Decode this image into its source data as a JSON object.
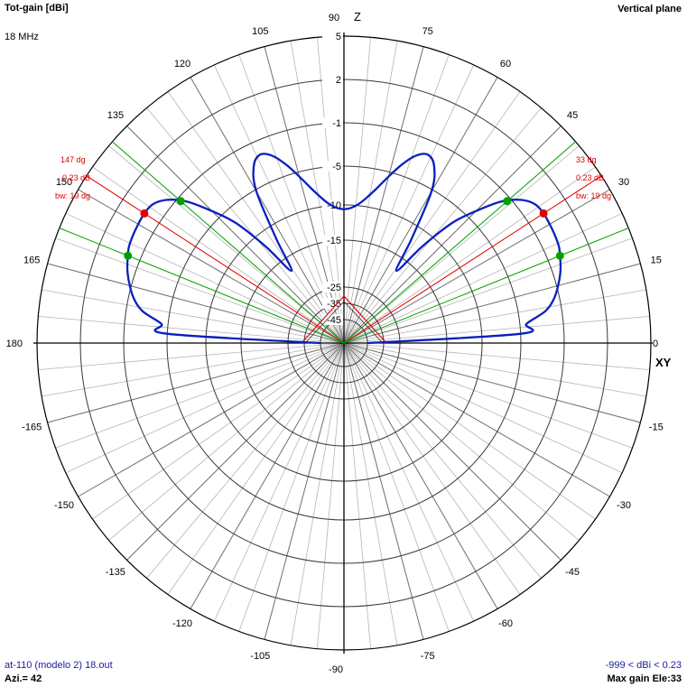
{
  "header": {
    "title": "Tot-gain [dBi]",
    "frequency": "18 MHz",
    "plane": "Vertical plane"
  },
  "footer": {
    "file": "at-110 (modelo 2) 18.out",
    "azimuth": "Azi.= 42",
    "range": "-999 < dBi < 0.23",
    "max_gain": "Max gain Ele:33"
  },
  "axes": {
    "z_label": "Z",
    "xy_label": "XY"
  },
  "colors": {
    "pattern": "#0a1fbf",
    "max_marker": "#e00000",
    "bw_marker": "#00a000",
    "grid": "#000000",
    "guide": "#b5b5b5"
  },
  "chart_data": {
    "type": "polar",
    "title": "Tot-gain [dBi]",
    "angle_unit": "deg",
    "angle_labels": [
      "0",
      "15",
      "30",
      "45",
      "60",
      "75",
      "90",
      "105",
      "120",
      "135",
      "150",
      "165",
      "180",
      "-165",
      "-150",
      "-135",
      "-120",
      "-105",
      "-90",
      "-75",
      "-60",
      "-45",
      "-30",
      "-15"
    ],
    "gain_ring_labels": [
      "5",
      "2",
      "-1",
      "-5",
      "-10",
      "-15",
      "-25",
      "-35",
      "-45"
    ],
    "gain_rings_dbi": [
      5,
      2,
      -1,
      -5,
      -10,
      -15,
      -25,
      -35,
      -45
    ],
    "pattern": {
      "elevation_deg": [
        0,
        3,
        6,
        9,
        12,
        15,
        18,
        21,
        24,
        27,
        30,
        33,
        36,
        39,
        42,
        45,
        48,
        51,
        54,
        57,
        60,
        63,
        66,
        69,
        72,
        75,
        78,
        81,
        84,
        87,
        90
      ],
      "gain_dbi": [
        -45,
        -5,
        -4.4,
        -2.5,
        -1.5,
        -0.9,
        -0.5,
        -0.2,
        0.05,
        0.15,
        0.2,
        0.23,
        0.1,
        -0.5,
        -1.8,
        -4.1,
        -7,
        -12,
        -17.9,
        -12,
        -5.2,
        -3,
        -2.3,
        -2.8,
        -4,
        -5.6,
        -7.4,
        -8.8,
        -9.8,
        -10.4,
        -10.6
      ],
      "symmetric_about_deg": 90
    },
    "right_lobe": {
      "max_elevation_label": "33 dg",
      "max_gain_label": "0.23 dB",
      "beamwidth_label": "bw: 19 dg",
      "max_elevation_deg": 33,
      "max_gain_dbi": 0.23,
      "bw_edges_deg": [
        22,
        41
      ]
    },
    "left_lobe": {
      "max_elevation_label": "147 dg",
      "max_gain_label": "0.23 dB",
      "beamwidth_label": "bw: 19 dg",
      "max_elevation_deg": 147,
      "max_gain_dbi": 0.23,
      "bw_edges_deg": [
        139,
        158
      ]
    },
    "xlabel": "",
    "ylabel": "",
    "grid": true
  }
}
